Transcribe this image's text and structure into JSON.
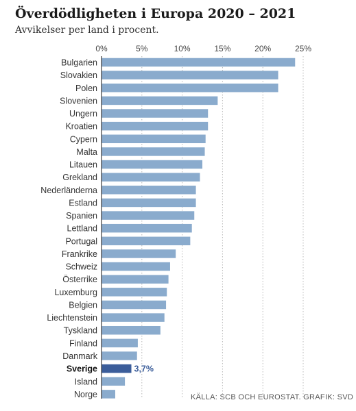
{
  "header": {
    "title": "Överdödligheten i Europa 2020 – 2021",
    "subtitle": "Avvikelser per land i procent."
  },
  "footer": {
    "source": "KÄLLA: SCB OCH EUROSTAT. GRAFIK: SVD"
  },
  "colors": {
    "bar": "#8aabcd",
    "highlight": "#3b5d9a",
    "grid": "#b8b8b8",
    "axis": "#3a3a3a"
  },
  "chart_data": {
    "type": "bar",
    "orientation": "horizontal",
    "title": "Överdödligheten i Europa 2020 – 2021",
    "subtitle": "Avvikelser per land i procent.",
    "xlabel": "",
    "ylabel": "",
    "xlim": [
      0,
      25
    ],
    "ticks": [
      0,
      5,
      10,
      15,
      20,
      25
    ],
    "tick_labels": [
      "0%",
      "5%",
      "10%",
      "15%",
      "20%",
      "25%"
    ],
    "grid": true,
    "categories": [
      "Bulgarien",
      "Slovakien",
      "Polen",
      "Slovenien",
      "Ungern",
      "Kroatien",
      "Cypern",
      "Malta",
      "Litauen",
      "Grekland",
      "Nederländerna",
      "Estland",
      "Spanien",
      "Lettland",
      "Portugal",
      "Frankrike",
      "Schweiz",
      "Österrike",
      "Luxemburg",
      "Belgien",
      "Liechtenstein",
      "Tyskland",
      "Finland",
      "Danmark",
      "Sverige",
      "Island",
      "Norge"
    ],
    "values": [
      24.0,
      21.9,
      21.9,
      14.4,
      13.2,
      13.2,
      12.9,
      12.8,
      12.5,
      12.2,
      11.7,
      11.7,
      11.5,
      11.2,
      11.0,
      9.2,
      8.5,
      8.3,
      8.1,
      8.0,
      7.8,
      7.3,
      4.5,
      4.4,
      3.7,
      2.9,
      1.7
    ],
    "highlight": {
      "category": "Sverige",
      "label": "3,7%"
    }
  }
}
